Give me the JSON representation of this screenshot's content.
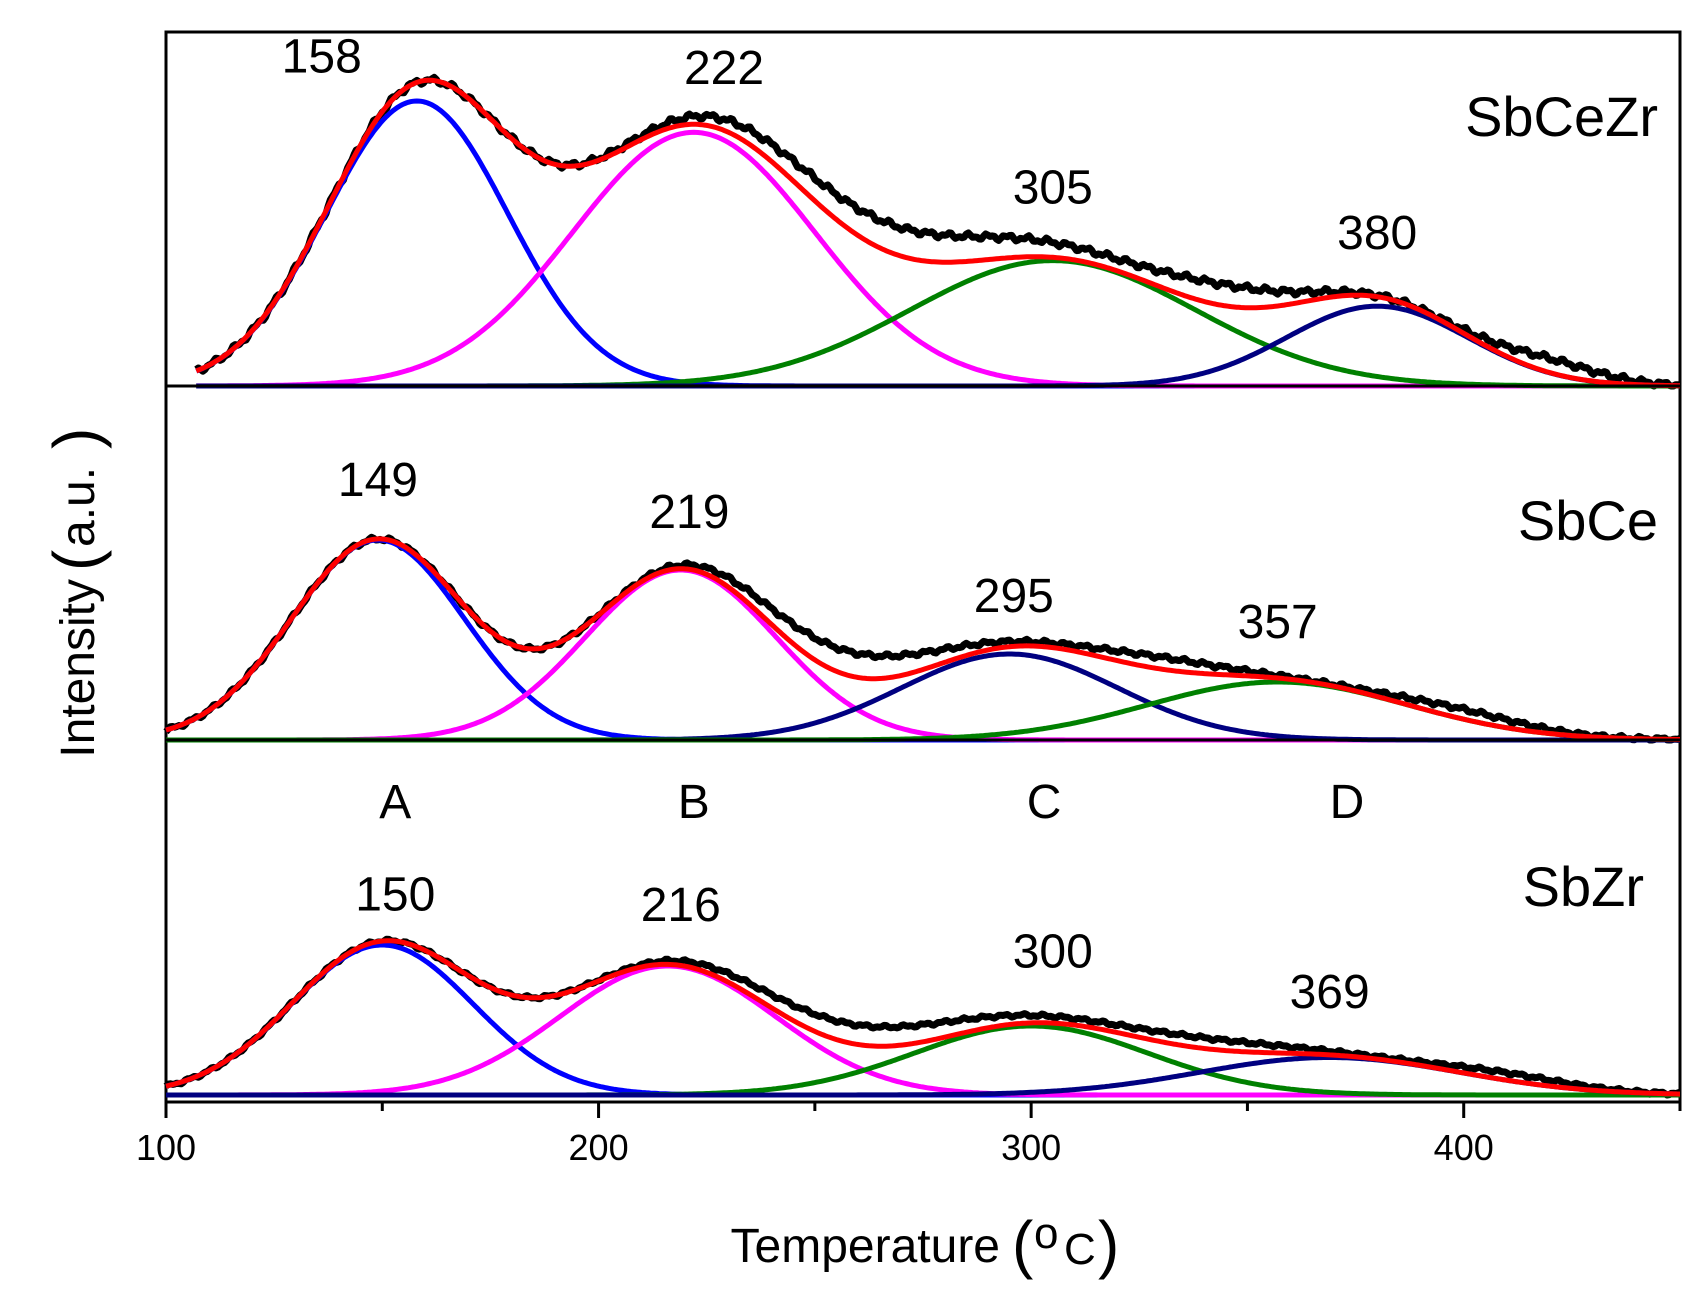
{
  "chart_data": {
    "type": "line",
    "subtype": "stacked TPD profiles with Gaussian peak deconvolution",
    "xlabel": "Temperature",
    "xlabel_unit_sup": "o",
    "xlabel_unit": "C",
    "ylabel": "Intensity",
    "ylabel_unit": "a.u.",
    "xlim": [
      100,
      450
    ],
    "xticks": [
      100,
      200,
      300,
      400
    ],
    "region_labels": [
      {
        "label": "A",
        "x": 153
      },
      {
        "label": "B",
        "x": 222
      },
      {
        "label": "C",
        "x": 303
      },
      {
        "label": "D",
        "x": 373
      }
    ],
    "colors": {
      "experimental": "#000000",
      "fit_sum": "#ff0000",
      "peak_A": "#0000ff",
      "peak_B": "#ff00ff",
      "peak_green": "#008000",
      "peak_navy": "#000080"
    },
    "panels": [
      {
        "sample": "SbCeZr",
        "x_start": 107,
        "peaks": [
          {
            "label": "158",
            "center": 158,
            "height": 1.0,
            "sigma": 21,
            "color": "#0000ff"
          },
          {
            "label": "222",
            "center": 222,
            "height": 0.89,
            "sigma": 28,
            "color": "#ff00ff"
          },
          {
            "label": "305",
            "center": 305,
            "height": 0.44,
            "sigma": 33,
            "color": "#008000"
          },
          {
            "label": "380",
            "center": 380,
            "height": 0.28,
            "sigma": 21,
            "color": "#000080"
          }
        ],
        "label_pos": [
          {
            "x": 136,
            "v": 1.1
          },
          {
            "x": 229,
            "v": 1.06
          },
          {
            "x": 305,
            "v": 0.64
          },
          {
            "x": 380,
            "v": 0.48
          }
        ],
        "experimental_shoulders": [
          {
            "center": 270,
            "height": 0.1,
            "sigma": 30
          },
          {
            "center": 345,
            "height": 0.07,
            "sigma": 15
          },
          {
            "center": 420,
            "height": 0.05,
            "sigma": 12
          }
        ]
      },
      {
        "sample": "SbCe",
        "x_start": 100,
        "peaks": [
          {
            "label": "149",
            "center": 149,
            "height": 1.0,
            "sigma": 20,
            "color": "#0000ff"
          },
          {
            "label": "219",
            "center": 219,
            "height": 0.85,
            "sigma": 22,
            "color": "#ff00ff"
          },
          {
            "label": "295",
            "center": 295,
            "height": 0.43,
            "sigma": 25,
            "color": "#000080"
          },
          {
            "label": "357",
            "center": 357,
            "height": 0.29,
            "sigma": 30,
            "color": "#008000"
          }
        ],
        "label_pos": [
          {
            "x": 149,
            "v": 1.22
          },
          {
            "x": 221,
            "v": 1.06
          },
          {
            "x": 296,
            "v": 0.64
          },
          {
            "x": 357,
            "v": 0.51
          }
        ],
        "experimental_shoulders": [
          {
            "center": 258,
            "height": 0.12,
            "sigma": 20
          },
          {
            "center": 330,
            "height": 0.06,
            "sigma": 15
          },
          {
            "center": 400,
            "height": 0.05,
            "sigma": 15
          }
        ]
      },
      {
        "sample": "SbZr",
        "x_start": 100,
        "peaks": [
          {
            "label": "150",
            "center": 150,
            "height": 1.0,
            "sigma": 21,
            "color": "#0000ff"
          },
          {
            "label": "216",
            "center": 216,
            "height": 0.86,
            "sigma": 25,
            "color": "#ff00ff"
          },
          {
            "label": "300",
            "center": 300,
            "height": 0.46,
            "sigma": 27,
            "color": "#008000"
          },
          {
            "label": "369",
            "center": 369,
            "height": 0.25,
            "sigma": 30,
            "color": "#000080"
          }
        ],
        "label_pos": [
          {
            "x": 153,
            "v": 1.23
          },
          {
            "x": 219,
            "v": 1.16
          },
          {
            "x": 305,
            "v": 0.85
          },
          {
            "x": 369,
            "v": 0.58
          }
        ],
        "experimental_shoulders": [
          {
            "center": 262,
            "height": 0.13,
            "sigma": 25
          },
          {
            "center": 340,
            "height": 0.07,
            "sigma": 20
          },
          {
            "center": 410,
            "height": 0.05,
            "sigma": 15
          }
        ]
      }
    ]
  }
}
